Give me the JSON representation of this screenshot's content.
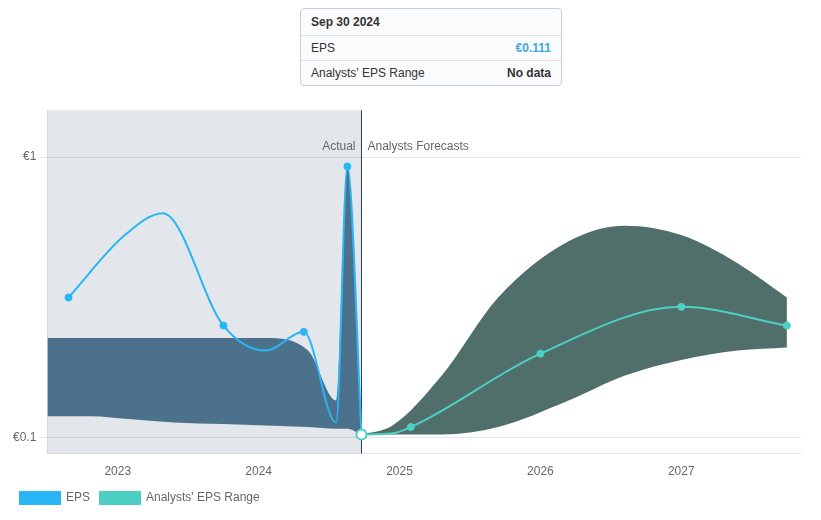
{
  "chart_data": {
    "type": "line",
    "xlim": [
      2022.5,
      2027.85
    ],
    "xticks": [
      2023,
      2024,
      2025,
      2026,
      2027
    ],
    "ylim": [
      0.05,
      1.15
    ],
    "yticks": [
      {
        "value": 0.1,
        "label": "€0.1"
      },
      {
        "value": 1.0,
        "label": "€1"
      }
    ],
    "grid": true,
    "legend": "bottom",
    "series": [
      {
        "name": "EPS",
        "color": "#29b6f6",
        "x": [
          2022.65,
          2023.05,
          2023.32,
          2023.75,
          2024.05,
          2024.32,
          2024.55,
          2024.63,
          2024.73
        ],
        "values": [
          0.55,
          0.75,
          0.82,
          0.46,
          0.38,
          0.44,
          0.15,
          0.97,
          0.111
        ],
        "markers": {
          "x": [
            2022.65,
            2023.75,
            2024.32,
            2024.63
          ],
          "values": [
            0.55,
            0.46,
            0.44,
            0.97
          ]
        }
      },
      {
        "name": "Analysts' EPS Range",
        "color": "#4dd0c4",
        "x": [
          2024.73,
          2024.95,
          2025.08,
          2026.0,
          2027.0,
          2027.75
        ],
        "values": [
          0.111,
          0.115,
          0.135,
          0.37,
          0.52,
          0.46
        ],
        "markers": {
          "x": [
            2024.73,
            2025.08,
            2026.0,
            2027.0,
            2027.75
          ],
          "values": [
            0.111,
            0.135,
            0.37,
            0.52,
            0.46
          ]
        }
      }
    ],
    "bands": [
      {
        "color": "#1a4a6e",
        "x": [
          2022.5,
          2022.8,
          2023.1,
          2023.4,
          2023.75,
          2024.05,
          2024.35,
          2024.55,
          2024.63,
          2024.73
        ],
        "upper": [
          0.42,
          0.42,
          0.42,
          0.42,
          0.42,
          0.42,
          0.38,
          0.22,
          0.97,
          0.111
        ],
        "lower": [
          0.17,
          0.17,
          0.16,
          0.15,
          0.145,
          0.14,
          0.135,
          0.13,
          0.13,
          0.111
        ]
      },
      {
        "color": "#163d38",
        "x": [
          2024.73,
          2024.95,
          2025.3,
          2025.7,
          2026.2,
          2026.6,
          2027.0,
          2027.4,
          2027.75
        ],
        "upper": [
          0.111,
          0.14,
          0.3,
          0.55,
          0.73,
          0.78,
          0.75,
          0.66,
          0.55
        ],
        "lower": [
          0.111,
          0.111,
          0.111,
          0.135,
          0.22,
          0.3,
          0.35,
          0.38,
          0.39
        ]
      }
    ],
    "divider": {
      "x": 2024.73,
      "color": "#2a4060",
      "shade_color": "#1a3050",
      "left_label": "Actual",
      "right_label": "Analysts Forecasts",
      "label_y": 1.0
    },
    "highlight": {
      "x": 2024.73,
      "y": 0.111,
      "color": "#4dd0c4"
    },
    "tooltip": {
      "title": "Sep 30 2024",
      "rows": [
        {
          "label": "EPS",
          "value": "€0.111",
          "color": "#3fa8e0"
        },
        {
          "label": "Analysts' EPS Range",
          "value": "No data"
        }
      ]
    }
  }
}
